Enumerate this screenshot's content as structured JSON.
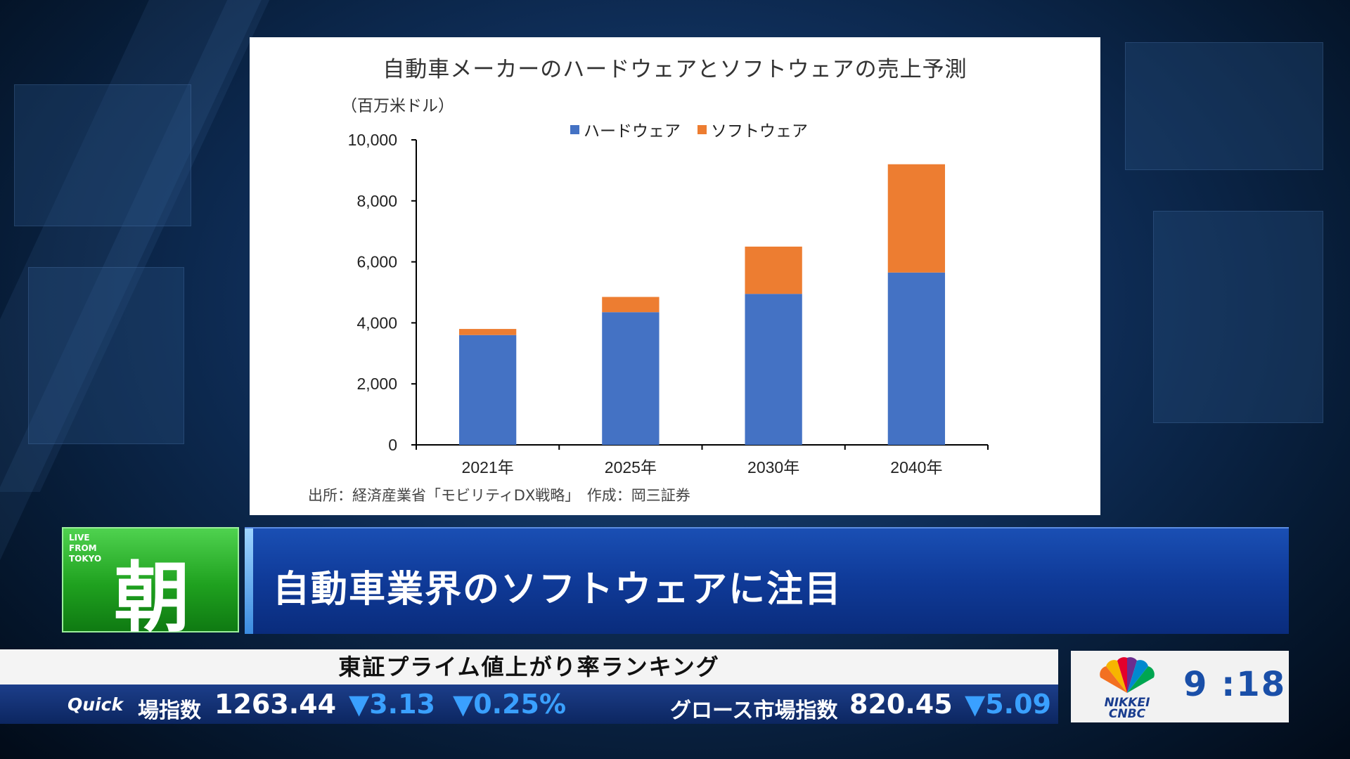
{
  "chart_data": {
    "type": "bar",
    "stacked": true,
    "title": "自動車メーカーのハードウェアとソフトウェアの売上予測",
    "unit_label": "（百万米ドル）",
    "categories": [
      "2021年",
      "2025年",
      "2030年",
      "2040年"
    ],
    "series": [
      {
        "name": "ハードウェア",
        "color": "#4472C4",
        "values": [
          3600,
          4350,
          4950,
          5650
        ]
      },
      {
        "name": "ソフトウェア",
        "color": "#ED7D31",
        "values": [
          200,
          500,
          1550,
          3550
        ]
      }
    ],
    "ylim": [
      0,
      10000
    ],
    "yticks": [
      "0",
      "2,000",
      "4,000",
      "6,000",
      "8,000",
      "10,000"
    ],
    "ytick_values": [
      0,
      2000,
      4000,
      6000,
      8000,
      10000
    ],
    "grid": false,
    "legend_position": "top",
    "source_note": "出所：経済産業省「モビリティDX戦略」　作成：岡三証券"
  },
  "program": {
    "live_tag": "LIVE\nFROM\nTOKYO",
    "logo_char": "朝",
    "headline": "自動車業界のソフトウェアに注目"
  },
  "ticker": {
    "title": "東証プライム値上がり率ランキング",
    "brand": "Quick",
    "index1_label": "場指数",
    "index1_value": "1263.44",
    "index1_change": "▼3.13",
    "index1_pct": "▼0.25%",
    "index2_label": "グロース市場指数",
    "index2_value": "820.45",
    "index2_change": "▼5.09",
    "down_color": "#3aa0ff"
  },
  "clock": {
    "time": "9 :18",
    "logo_text_1": "NIKKEI",
    "logo_text_2": "CNBC"
  }
}
